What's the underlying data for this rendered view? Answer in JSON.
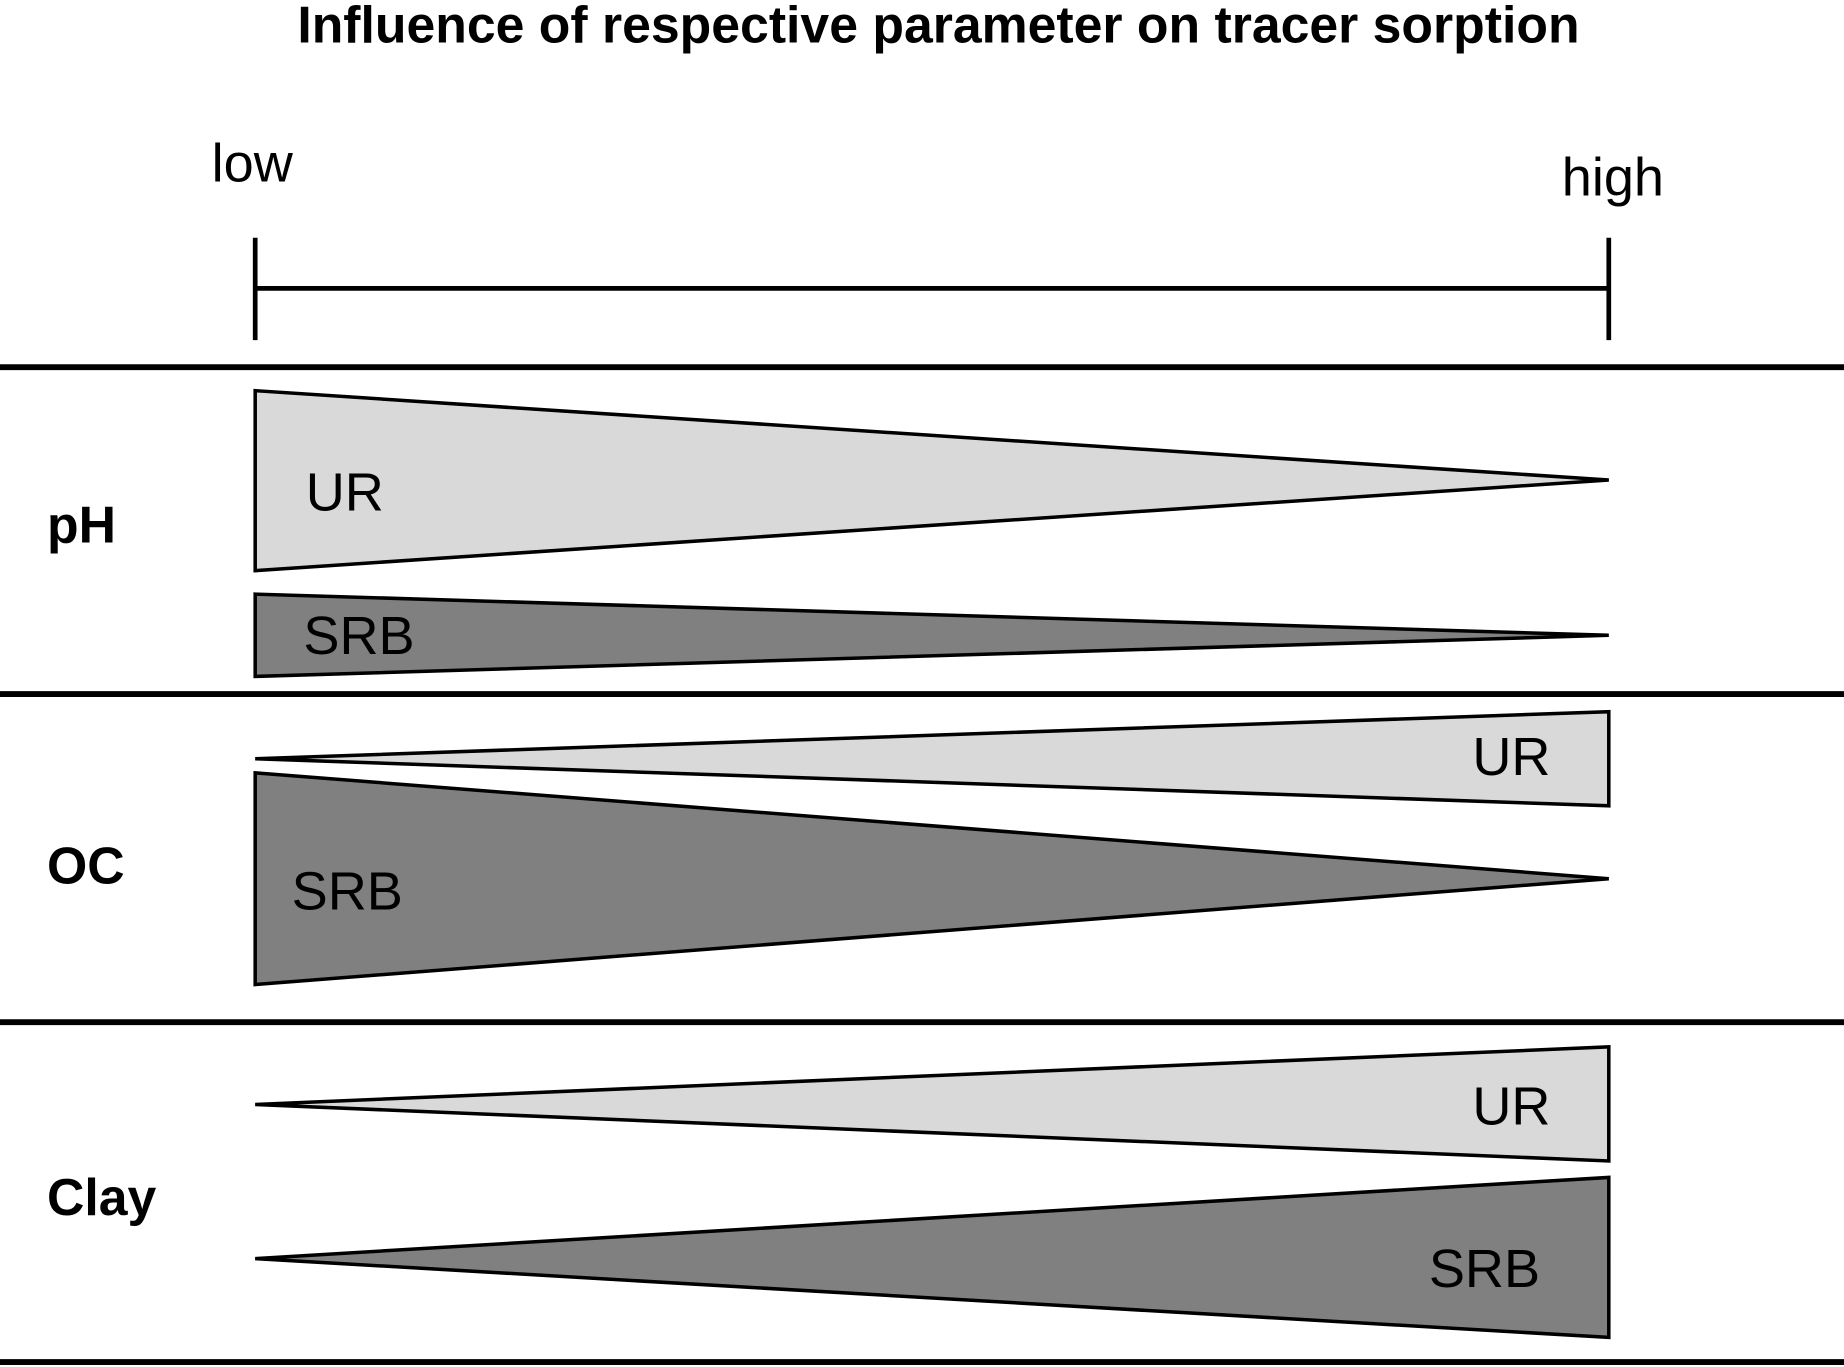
{
  "title": "Influence of respective parameter on tracer sorption",
  "scale": {
    "low": "low",
    "high": "high"
  },
  "rows": [
    {
      "label": "pH",
      "wedges": [
        {
          "label": "UR"
        },
        {
          "label": "SRB"
        }
      ]
    },
    {
      "label": "OC",
      "wedges": [
        {
          "label": "UR"
        },
        {
          "label": "SRB"
        }
      ]
    },
    {
      "label": "Clay",
      "wedges": [
        {
          "label": "UR"
        },
        {
          "label": "SRB"
        }
      ]
    }
  ]
}
